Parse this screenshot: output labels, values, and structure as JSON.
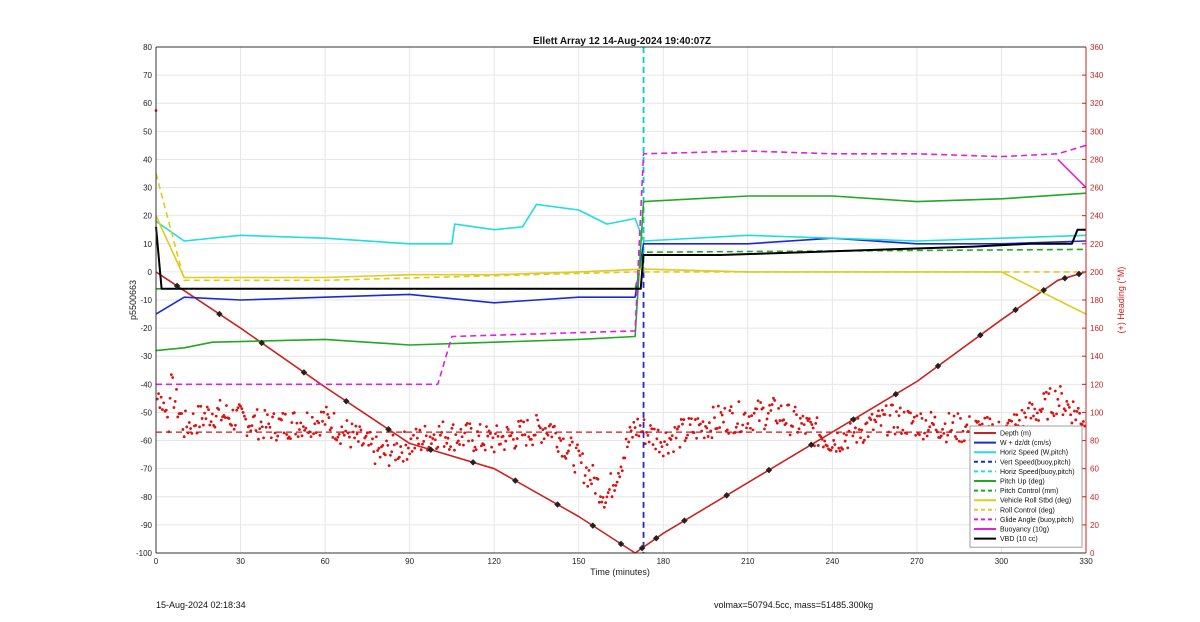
{
  "chart_data": {
    "type": "line",
    "title": "Ellett Array 12 14-Aug-2024 19:40:07Z",
    "xlabel": "Time (minutes)",
    "ylabel_left": "p5500663",
    "ylabel_right": "(+) Heading (°M)",
    "xlim": [
      0,
      330
    ],
    "ylim_left": [
      -100,
      80
    ],
    "ylim_right": [
      0,
      360
    ],
    "x_ticks": [
      0,
      30,
      60,
      90,
      120,
      150,
      180,
      210,
      240,
      270,
      300,
      330
    ],
    "y_ticks_left": [
      80,
      70,
      60,
      50,
      40,
      30,
      20,
      10,
      0,
      -10,
      -20,
      -30,
      -40,
      -50,
      -60,
      -70,
      -80,
      -90,
      -100
    ],
    "y_ticks_right": [
      360,
      340,
      320,
      300,
      280,
      260,
      240,
      220,
      200,
      180,
      160,
      140,
      120,
      100,
      80,
      60,
      40,
      20,
      0
    ],
    "grid": true,
    "legend_position": "bottom-right",
    "vertical_markers": [
      {
        "x": 173,
        "color": "#00cccc",
        "range": [
          80,
          0
        ]
      },
      {
        "x": 173,
        "color": "#1a2bd6",
        "range": [
          0,
          -100
        ]
      }
    ],
    "series": [
      {
        "name": "Depth (m)",
        "color": "#cc2222",
        "style": "solid",
        "points": [
          [
            0,
            0
          ],
          [
            30,
            -20
          ],
          [
            60,
            -41
          ],
          [
            90,
            -61
          ],
          [
            120,
            -70
          ],
          [
            150,
            -87
          ],
          [
            170,
            -100
          ],
          [
            180,
            -93
          ],
          [
            210,
            -75
          ],
          [
            240,
            -57
          ],
          [
            270,
            -39
          ],
          [
            300,
            -17
          ],
          [
            320,
            -3
          ],
          [
            330,
            0
          ]
        ]
      },
      {
        "name": "W + dz/dt (cm/s)",
        "color": "#1a2bd6",
        "style": "solid",
        "points": [
          [
            0,
            -15
          ],
          [
            10,
            -9
          ],
          [
            30,
            -10
          ],
          [
            60,
            -9
          ],
          [
            90,
            -8
          ],
          [
            120,
            -11
          ],
          [
            150,
            -9
          ],
          [
            170,
            -9
          ],
          [
            173,
            10
          ],
          [
            210,
            10
          ],
          [
            240,
            12
          ],
          [
            270,
            10
          ],
          [
            300,
            10
          ],
          [
            330,
            11
          ]
        ]
      },
      {
        "name": "Horiz Speed (W,pitch)",
        "color": "#22dddd",
        "style": "solid",
        "points": [
          [
            0,
            18
          ],
          [
            10,
            11
          ],
          [
            30,
            13
          ],
          [
            60,
            12
          ],
          [
            90,
            10
          ],
          [
            105,
            10
          ],
          [
            106,
            17
          ],
          [
            120,
            15
          ],
          [
            130,
            16
          ],
          [
            135,
            24
          ],
          [
            150,
            22
          ],
          [
            160,
            17
          ],
          [
            170,
            19
          ],
          [
            173,
            11
          ],
          [
            210,
            13
          ],
          [
            240,
            12
          ],
          [
            270,
            11
          ],
          [
            300,
            12
          ],
          [
            330,
            13
          ]
        ]
      },
      {
        "name": "Vert Speed(buoy,pitch)",
        "color": "#1a2bd6",
        "style": "dashed",
        "points": []
      },
      {
        "name": "Horiz Speed(buoy,pitch)",
        "color": "#22dddd",
        "style": "dashed",
        "points": []
      },
      {
        "name": "Pitch Up (deg)",
        "color": "#22a822",
        "style": "solid",
        "points": [
          [
            0,
            -28
          ],
          [
            10,
            -27
          ],
          [
            20,
            -25
          ],
          [
            60,
            -24
          ],
          [
            90,
            -26
          ],
          [
            120,
            -25
          ],
          [
            150,
            -24
          ],
          [
            170,
            -23
          ],
          [
            173,
            25
          ],
          [
            210,
            27
          ],
          [
            240,
            27
          ],
          [
            270,
            25
          ],
          [
            300,
            26
          ],
          [
            330,
            28
          ]
        ]
      },
      {
        "name": "Pitch Control (mm)",
        "color": "#22a822",
        "style": "dashed",
        "points": [
          [
            0,
            -6
          ],
          [
            170,
            -6
          ],
          [
            173,
            7
          ],
          [
            330,
            8
          ]
        ]
      },
      {
        "name": "Vehicle Roll Stbd (deg)",
        "color": "#ddcc22",
        "style": "solid",
        "points": [
          [
            0,
            20
          ],
          [
            10,
            -2
          ],
          [
            60,
            -2
          ],
          [
            90,
            -1
          ],
          [
            120,
            -1
          ],
          [
            150,
            0
          ],
          [
            173,
            1
          ],
          [
            210,
            0
          ],
          [
            240,
            0
          ],
          [
            270,
            0
          ],
          [
            300,
            0
          ],
          [
            330,
            -15
          ]
        ]
      },
      {
        "name": "Roll Control (deg)",
        "color": "#ddcc22",
        "style": "dashed",
        "points": [
          [
            0,
            35
          ],
          [
            10,
            -3
          ],
          [
            60,
            -3
          ],
          [
            170,
            0
          ],
          [
            173,
            0
          ],
          [
            330,
            0
          ]
        ]
      },
      {
        "name": "Glide Angle (buoy,pitch)",
        "color": "#dd22dd",
        "style": "dashed",
        "points": [
          [
            0,
            -40
          ],
          [
            100,
            -40
          ],
          [
            105,
            -23
          ],
          [
            170,
            -21
          ],
          [
            173,
            42
          ],
          [
            210,
            43
          ],
          [
            240,
            42
          ],
          [
            270,
            42
          ],
          [
            300,
            41
          ],
          [
            320,
            42
          ],
          [
            330,
            45
          ]
        ]
      },
      {
        "name": "Buoyancy (10g)",
        "color": "#dd22dd",
        "style": "solid",
        "points": [
          [
            320,
            40
          ],
          [
            330,
            30
          ]
        ]
      },
      {
        "name": "VBD (10 cc)",
        "color": "#000000",
        "style": "solid",
        "points": [
          [
            0,
            16
          ],
          [
            2,
            -6
          ],
          [
            172,
            -6
          ],
          [
            173,
            6
          ],
          [
            200,
            6
          ],
          [
            230,
            7
          ],
          [
            260,
            8
          ],
          [
            290,
            9
          ],
          [
            310,
            10
          ],
          [
            325,
            10
          ],
          [
            327,
            15
          ],
          [
            330,
            15
          ]
        ]
      }
    ],
    "heading_series": {
      "name": "Heading",
      "axis": "right",
      "color": "#dd1111",
      "style": "dots",
      "reference_value": 86,
      "reference_line": "dashed",
      "approx_values_at_minutes": [
        [
          0,
          315
        ],
        [
          5,
          120
        ],
        [
          10,
          90
        ],
        [
          20,
          100
        ],
        [
          40,
          90
        ],
        [
          60,
          95
        ],
        [
          80,
          70
        ],
        [
          100,
          85
        ],
        [
          120,
          80
        ],
        [
          140,
          90
        ],
        [
          160,
          40
        ],
        [
          170,
          90
        ],
        [
          180,
          80
        ],
        [
          200,
          95
        ],
        [
          220,
          100
        ],
        [
          240,
          80
        ],
        [
          260,
          95
        ],
        [
          280,
          90
        ],
        [
          300,
          85
        ],
        [
          320,
          110
        ],
        [
          330,
          95
        ]
      ]
    }
  },
  "footer": {
    "date_label": "15-Aug-2024 02:18:34",
    "volmax_label": "volmax=50794.5cc, mass=51485.300kg"
  }
}
